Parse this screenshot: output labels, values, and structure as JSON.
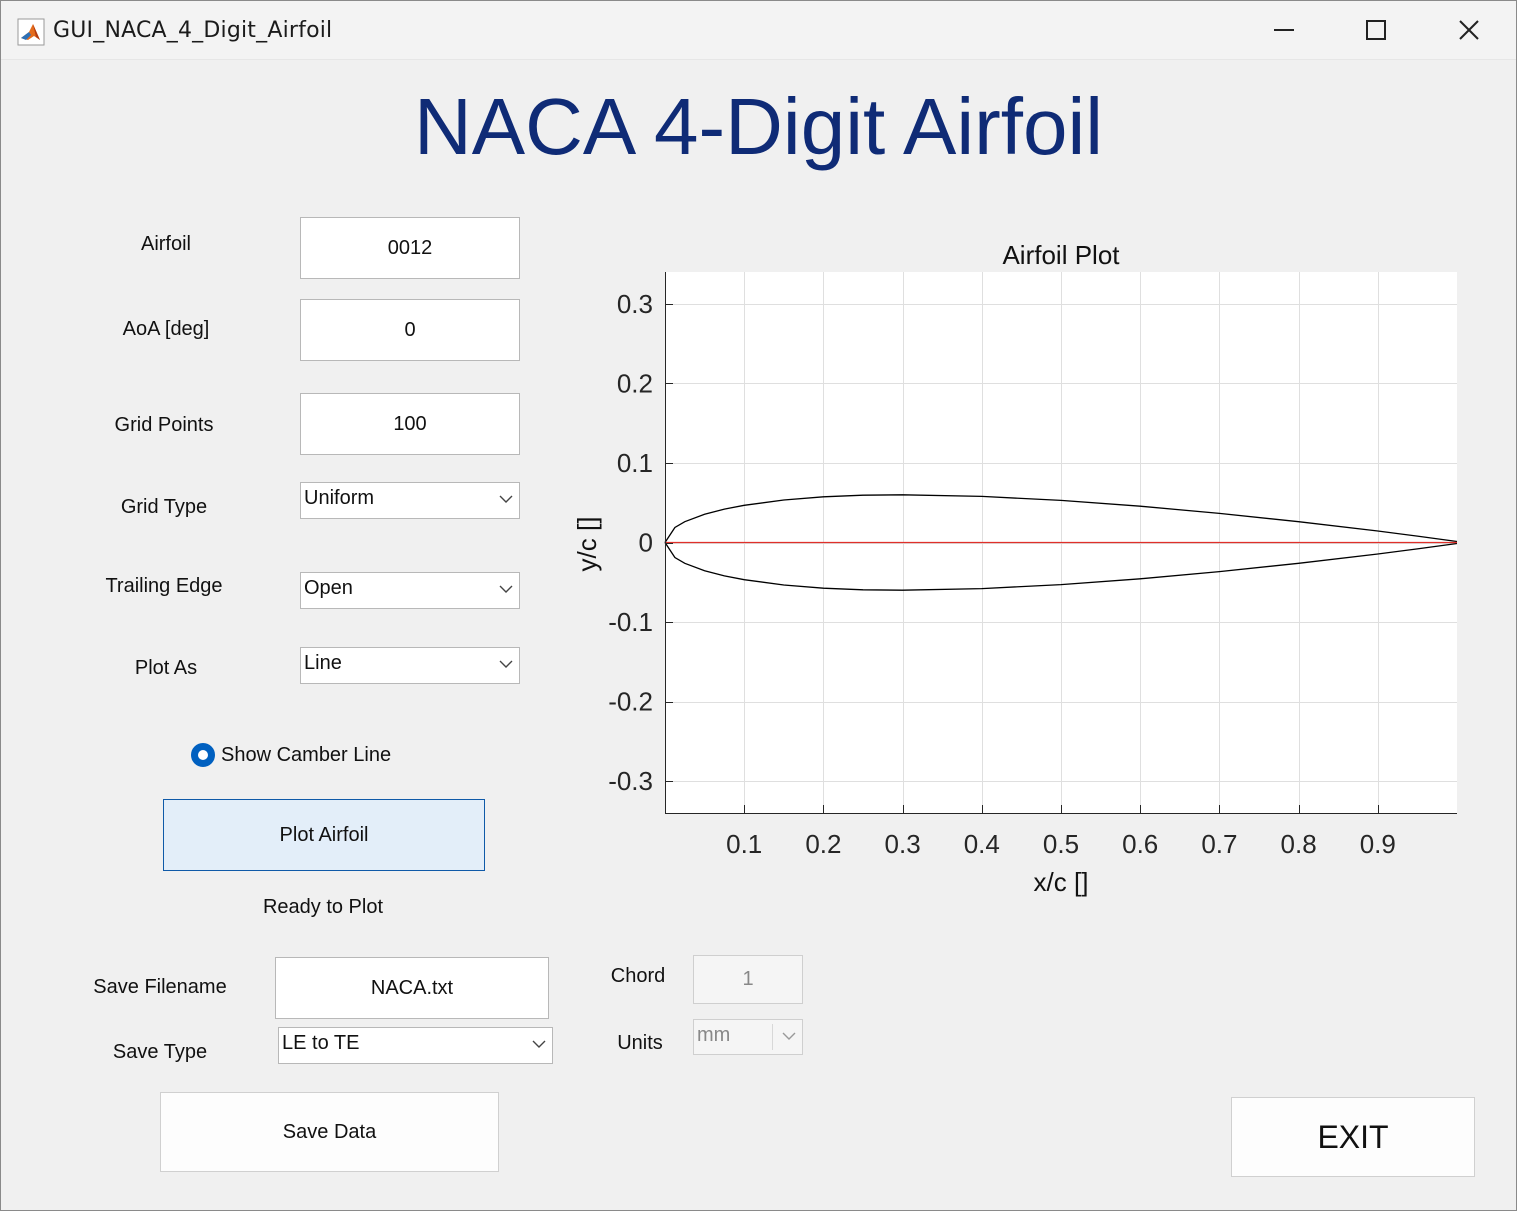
{
  "window": {
    "title": "GUI_NACA_4_Digit_Airfoil"
  },
  "header": {
    "title": "NACA 4-Digit Airfoil"
  },
  "inputs": {
    "airfoil": {
      "label": "Airfoil",
      "value": "0012"
    },
    "aoa": {
      "label": "AoA [deg]",
      "value": "0"
    },
    "grid_points": {
      "label": "Grid Points",
      "value": "100"
    },
    "grid_type": {
      "label": "Grid Type",
      "value": "Uniform"
    },
    "trailing_edge": {
      "label": "Trailing Edge",
      "value": "Open"
    },
    "plot_as": {
      "label": "Plot As",
      "value": "Line"
    },
    "show_camber": {
      "label": "Show Camber Line",
      "checked": true
    }
  },
  "actions": {
    "plot_button": "Plot Airfoil",
    "status": "Ready to Plot",
    "save_button": "Save Data",
    "exit_button": "EXIT"
  },
  "save": {
    "filename_label": "Save Filename",
    "filename": "NACA.txt",
    "type_label": "Save Type",
    "type": "LE to TE"
  },
  "geometry": {
    "chord_label": "Chord",
    "chord": "1",
    "units_label": "Units",
    "units": "mm"
  },
  "colors": {
    "title": "#0f2b76",
    "airfoil": "#000000",
    "camber": "#e0302a",
    "accent": "#0060c0"
  },
  "chart_data": {
    "type": "line",
    "title": "Airfoil Plot",
    "xlabel": "x/c []",
    "ylabel": "y/c []",
    "xlim": [
      0,
      1
    ],
    "ylim": [
      -0.34,
      0.34
    ],
    "xticks": [
      0.1,
      0.2,
      0.3,
      0.4,
      0.5,
      0.6,
      0.7,
      0.8,
      0.9
    ],
    "yticks": [
      -0.3,
      -0.2,
      -0.1,
      0,
      0.1,
      0.2,
      0.3
    ],
    "grid": true,
    "series": [
      {
        "x": [
          0,
          0.0125,
          0.025,
          0.05,
          0.075,
          0.1,
          0.15,
          0.2,
          0.25,
          0.3,
          0.4,
          0.5,
          0.6,
          0.7,
          0.8,
          0.9,
          0.95,
          1.0
        ],
        "y": [
          0,
          0.0189,
          0.0262,
          0.0355,
          0.042,
          0.0468,
          0.0534,
          0.0574,
          0.0594,
          0.06,
          0.058,
          0.0529,
          0.0456,
          0.0366,
          0.0262,
          0.0145,
          0.0081,
          0.0013
        ]
      },
      {
        "x": [
          0,
          0.0125,
          0.025,
          0.05,
          0.075,
          0.1,
          0.15,
          0.2,
          0.25,
          0.3,
          0.4,
          0.5,
          0.6,
          0.7,
          0.8,
          0.9,
          0.95,
          1.0
        ],
        "y": [
          0,
          -0.0189,
          -0.0262,
          -0.0355,
          -0.042,
          -0.0468,
          -0.0534,
          -0.0574,
          -0.0594,
          -0.06,
          -0.058,
          -0.0529,
          -0.0456,
          -0.0366,
          -0.0262,
          -0.0145,
          -0.0081,
          -0.0013
        ]
      },
      {
        "x": [
          0,
          1
        ],
        "y": [
          0,
          0
        ]
      }
    ]
  }
}
